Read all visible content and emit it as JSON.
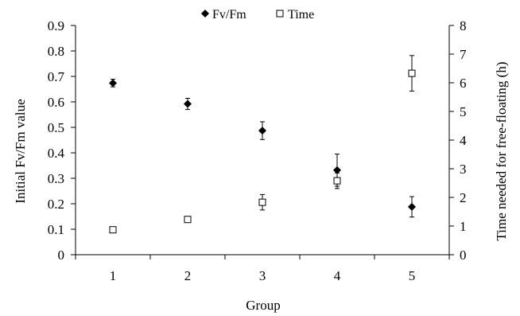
{
  "chart_data": {
    "type": "scatter",
    "title": "",
    "xlabel": "Group",
    "ylabel_left": "Initial Fv/Fm value",
    "ylabel_right": "Time needed for free-floating (h)",
    "categories": [
      "1",
      "2",
      "3",
      "4",
      "5"
    ],
    "y_left_lim": [
      0,
      0.9
    ],
    "y_left_ticks": [
      "0",
      "0.1",
      "0.2",
      "0.3",
      "0.4",
      "0.5",
      "0.6",
      "0.7",
      "0.8",
      "0.9"
    ],
    "y_right_lim": [
      0,
      8
    ],
    "y_right_ticks": [
      "0",
      "1",
      "2",
      "3",
      "4",
      "5",
      "6",
      "7",
      "8"
    ],
    "grid": false,
    "legend": "top",
    "series": [
      {
        "name": "Fv/Fm",
        "axis": "left",
        "marker": "filled-diamond",
        "x": [
          1,
          2,
          3,
          4,
          5
        ],
        "values": [
          0.674,
          0.592,
          0.487,
          0.332,
          0.188
        ],
        "error": [
          0.015,
          0.022,
          0.035,
          0.063,
          0.04
        ]
      },
      {
        "name": "Time",
        "axis": "right",
        "marker": "open-square",
        "x": [
          1,
          2,
          3,
          4,
          5
        ],
        "values": [
          0.87,
          1.23,
          1.83,
          2.58,
          6.33
        ],
        "error": [
          0.1,
          0.1,
          0.27,
          0.27,
          0.62
        ]
      }
    ]
  }
}
